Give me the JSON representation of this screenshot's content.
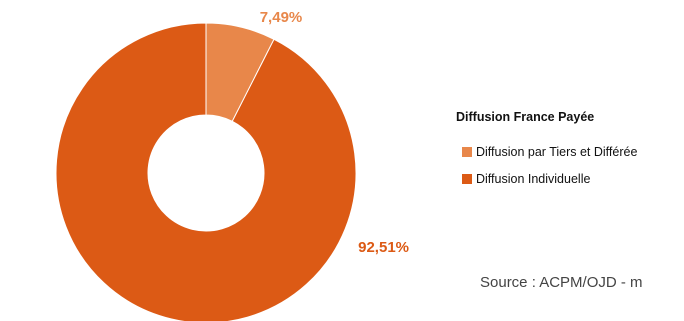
{
  "chart_data": {
    "type": "pie",
    "categories": [
      "Diffusion par Tiers et Différée",
      "Diffusion Individuelle"
    ],
    "values": [
      7.49,
      92.51
    ],
    "data_labels": [
      "7,49%",
      "92,51%"
    ],
    "colors": [
      "#e8874a",
      "#dc5a15"
    ],
    "donut": true,
    "legend": {
      "title": "Diffusion France Payée",
      "placement": "right",
      "items": [
        "Diffusion par Tiers et Différée",
        "Diffusion Individuelle"
      ]
    }
  },
  "source": "Source : ACPM/OJD - m"
}
